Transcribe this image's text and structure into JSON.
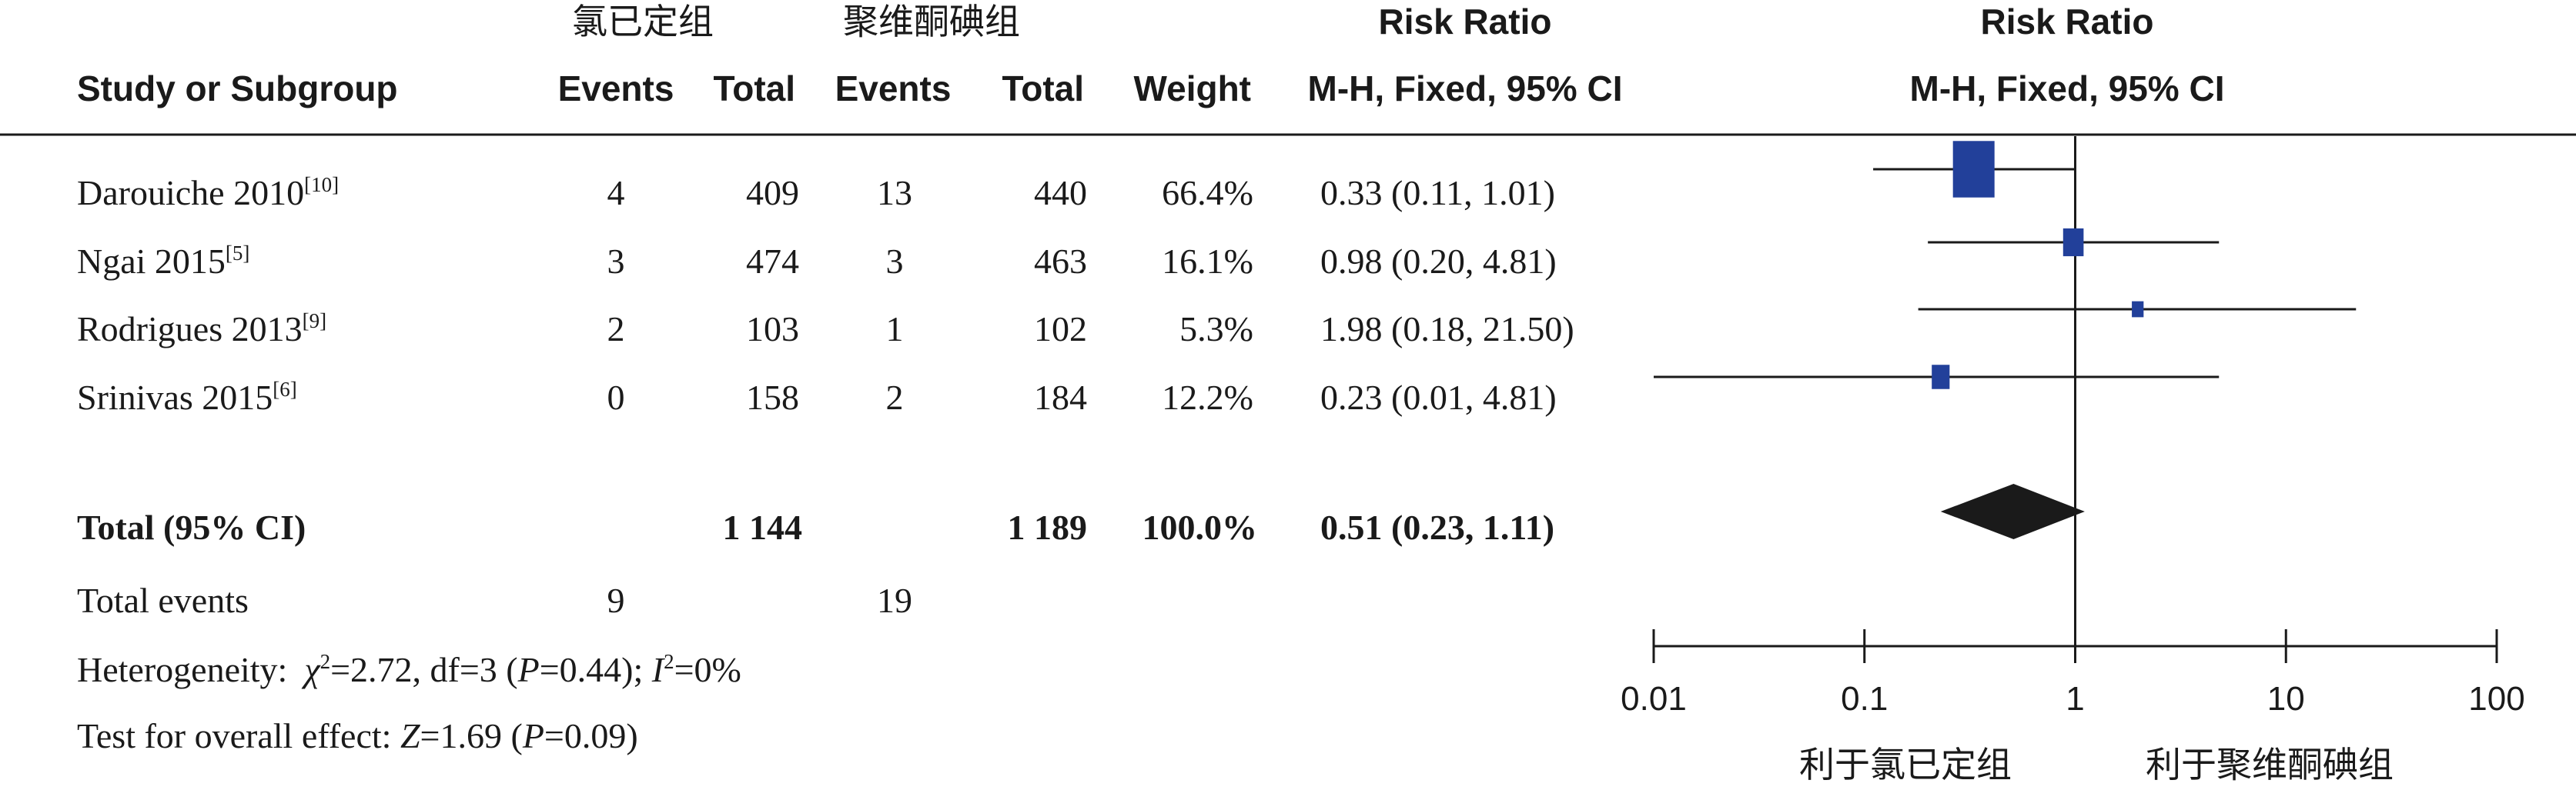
{
  "header": {
    "group1_name": "氯已定组",
    "group2_name": "聚维酮碘组",
    "risk_ratio_title": "Risk Ratio",
    "col_study": "Study or Subgroup",
    "col_events": "Events",
    "col_total": "Total",
    "col_weight": "Weight",
    "col_method": "M-H, Fixed, 95% CI",
    "plot_title": "Risk Ratio",
    "plot_method": "M-H, Fixed, 95% CI"
  },
  "studies": [
    {
      "name": "Darouiche 2010",
      "ref": "[10]",
      "e1": "4",
      "n1": "409",
      "e2": "13",
      "n2": "440",
      "weight": "66.4%",
      "ci_text": "0.33 (0.11, 1.01)"
    },
    {
      "name": "Ngai 2015",
      "ref": "[5]",
      "e1": "3",
      "n1": "474",
      "e2": "3",
      "n2": "463",
      "weight": "16.1%",
      "ci_text": "0.98 (0.20, 4.81)"
    },
    {
      "name": "Rodrigues 2013",
      "ref": "[9]",
      "e1": "2",
      "n1": "103",
      "e2": "1",
      "n2": "102",
      "weight": "5.3%",
      "ci_text": "1.98 (0.18, 21.50)"
    },
    {
      "name": "Srinivas 2015",
      "ref": "[6]",
      "e1": "0",
      "n1": "158",
      "e2": "2",
      "n2": "184",
      "weight": "12.2%",
      "ci_text": "0.23 (0.01, 4.81)"
    }
  ],
  "total": {
    "label": "Total (95% CI)",
    "n1": "1 144",
    "n2": "1 189",
    "weight": "100.0%",
    "ci_text": "0.51 (0.23, 1.11)"
  },
  "total_events": {
    "label": "Total events",
    "e1": "9",
    "e2": "19"
  },
  "heterogeneity": {
    "label": "Heterogeneity:",
    "chi_sym": "χ",
    "chi_sup": "2",
    "chi_value": "=2.72, df=3 (",
    "p_sym": "P",
    "p_value": "=0.44); ",
    "i_sym": "I",
    "i_sup": "2",
    "i_value": "=0%"
  },
  "overall": {
    "label": "Test for overall effect: ",
    "z_sym": "Z",
    "z_value": "=1.69 (",
    "p_sym": "P",
    "p_value": "=0.09)"
  },
  "chart_data": {
    "type": "forest",
    "x_scale": "log",
    "xlim": [
      0.01,
      100
    ],
    "x_ticks": [
      0.01,
      0.1,
      1,
      10,
      100
    ],
    "x_tick_labels": [
      "0.01",
      "0.1",
      "1",
      "10",
      "100"
    ],
    "reference_line": 1,
    "colors": {
      "study_marker": "#22409a",
      "diamond": "#1a1a1a",
      "line": "#1a1a1a"
    },
    "favours_left": "利于氯已定组",
    "favours_right": "利于聚维酮碘组",
    "series": [
      {
        "name": "Darouiche 2010",
        "rr": 0.33,
        "lower": 0.11,
        "upper": 1.01,
        "weight": 66.4
      },
      {
        "name": "Ngai 2015",
        "rr": 0.98,
        "lower": 0.2,
        "upper": 4.81,
        "weight": 16.1
      },
      {
        "name": "Rodrigues 2013",
        "rr": 1.98,
        "lower": 0.18,
        "upper": 21.5,
        "weight": 5.3
      },
      {
        "name": "Srinivas 2015",
        "rr": 0.23,
        "lower": 0.01,
        "upper": 4.81,
        "weight": 12.2
      }
    ],
    "pooled": {
      "rr": 0.51,
      "lower": 0.23,
      "upper": 1.11
    }
  }
}
